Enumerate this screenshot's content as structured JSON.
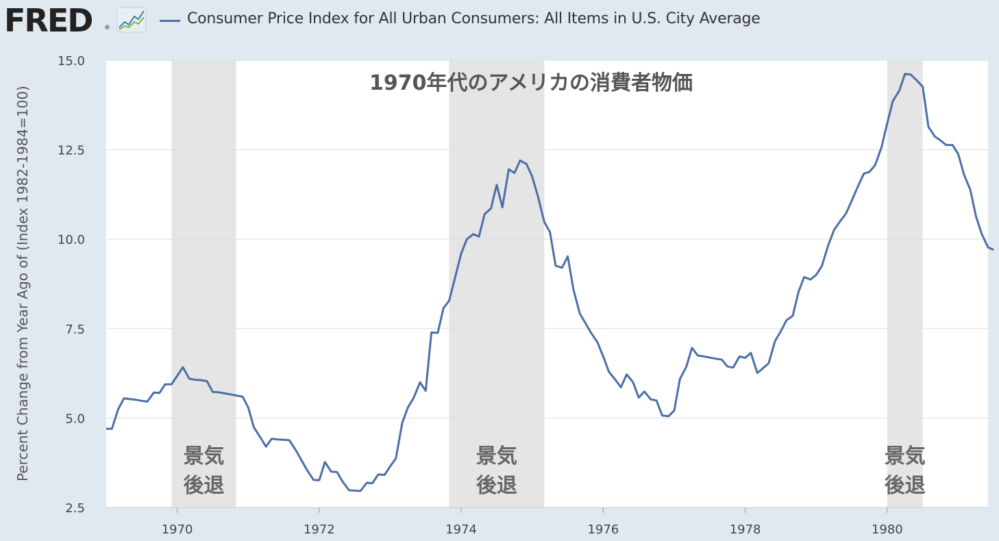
{
  "header": {
    "logo_text": "FRED",
    "logo_mark": "®",
    "graph_icon": "line-chart-icon",
    "series_legend": "Consumer Price Index for All Urban Consumers: All Items in U.S. City Average"
  },
  "colors": {
    "background": "#e1e9f0",
    "plot_background": "#ffffff",
    "line": "#4b6fa6",
    "recession_shade": "#e5e5e5",
    "gridline": "#dddddd"
  },
  "chart_data": {
    "type": "line",
    "title": "1970年代のアメリカの消費者物価",
    "ylabel": "Percent Change from Year Ago of (Index 1982-1984=100)",
    "xlabel": "",
    "xlim": [
      1969.0,
      1981.42
    ],
    "ylim": [
      2.5,
      15.0
    ],
    "yticks": [
      {
        "value": 2.5,
        "label": "2.5"
      },
      {
        "value": 5.0,
        "label": "5.0"
      },
      {
        "value": 7.5,
        "label": "7.5"
      },
      {
        "value": 10.0,
        "label": "10.0"
      },
      {
        "value": 12.5,
        "label": "12.5"
      },
      {
        "value": 15.0,
        "label": "15.0"
      }
    ],
    "xticks": [
      {
        "value": 1970,
        "label": "1970"
      },
      {
        "value": 1972,
        "label": "1972"
      },
      {
        "value": 1974,
        "label": "1974"
      },
      {
        "value": 1976,
        "label": "1976"
      },
      {
        "value": 1978,
        "label": "1978"
      },
      {
        "value": 1980,
        "label": "1980"
      }
    ],
    "grid": "horizontal",
    "recessions": [
      {
        "start": 1969.92,
        "end": 1970.83,
        "label_line1": "景気",
        "label_line2": "後退"
      },
      {
        "start": 1973.83,
        "end": 1975.17,
        "label_line1": "景気",
        "label_line2": "後退"
      },
      {
        "start": 1980.0,
        "end": 1980.5,
        "label_line1": "景気",
        "label_line2": "後退"
      }
    ],
    "series": [
      {
        "name": "Consumer Price Index for All Urban Consumers: All Items in U.S. City Average",
        "points": [
          [
            1969.0,
            4.7
          ],
          [
            1969.08,
            4.7
          ],
          [
            1969.17,
            5.25
          ],
          [
            1969.25,
            5.55
          ],
          [
            1969.33,
            5.53
          ],
          [
            1969.42,
            5.51
          ],
          [
            1969.5,
            5.48
          ],
          [
            1969.58,
            5.46
          ],
          [
            1969.67,
            5.71
          ],
          [
            1969.75,
            5.7
          ],
          [
            1969.83,
            5.94
          ],
          [
            1969.92,
            5.94
          ],
          [
            1970.0,
            6.18
          ],
          [
            1970.08,
            6.42
          ],
          [
            1970.17,
            6.1
          ],
          [
            1970.25,
            6.07
          ],
          [
            1970.33,
            6.06
          ],
          [
            1970.42,
            6.03
          ],
          [
            1970.5,
            5.73
          ],
          [
            1970.58,
            5.72
          ],
          [
            1970.67,
            5.69
          ],
          [
            1970.75,
            5.66
          ],
          [
            1970.83,
            5.63
          ],
          [
            1970.92,
            5.6
          ],
          [
            1971.0,
            5.3
          ],
          [
            1971.08,
            4.74
          ],
          [
            1971.17,
            4.46
          ],
          [
            1971.25,
            4.2
          ],
          [
            1971.33,
            4.42
          ],
          [
            1971.42,
            4.4
          ],
          [
            1971.5,
            4.39
          ],
          [
            1971.58,
            4.38
          ],
          [
            1971.67,
            4.1
          ],
          [
            1971.75,
            3.82
          ],
          [
            1971.83,
            3.54
          ],
          [
            1971.92,
            3.27
          ],
          [
            1972.0,
            3.26
          ],
          [
            1972.08,
            3.77
          ],
          [
            1972.17,
            3.5
          ],
          [
            1972.25,
            3.49
          ],
          [
            1972.33,
            3.22
          ],
          [
            1972.42,
            2.98
          ],
          [
            1972.5,
            2.97
          ],
          [
            1972.58,
            2.96
          ],
          [
            1972.67,
            3.19
          ],
          [
            1972.75,
            3.18
          ],
          [
            1972.83,
            3.42
          ],
          [
            1972.92,
            3.41
          ],
          [
            1973.0,
            3.65
          ],
          [
            1973.08,
            3.87
          ],
          [
            1973.17,
            4.87
          ],
          [
            1973.25,
            5.3
          ],
          [
            1973.33,
            5.56
          ],
          [
            1973.42,
            6.0
          ],
          [
            1973.5,
            5.76
          ],
          [
            1973.58,
            7.39
          ],
          [
            1973.67,
            7.38
          ],
          [
            1973.75,
            8.07
          ],
          [
            1973.83,
            8.28
          ],
          [
            1973.92,
            8.97
          ],
          [
            1974.0,
            9.6
          ],
          [
            1974.08,
            10.0
          ],
          [
            1974.17,
            10.14
          ],
          [
            1974.25,
            10.07
          ],
          [
            1974.33,
            10.7
          ],
          [
            1974.42,
            10.86
          ],
          [
            1974.5,
            11.52
          ],
          [
            1974.58,
            10.89
          ],
          [
            1974.67,
            11.95
          ],
          [
            1974.75,
            11.85
          ],
          [
            1974.83,
            12.2
          ],
          [
            1974.92,
            12.1
          ],
          [
            1975.0,
            11.75
          ],
          [
            1975.08,
            11.2
          ],
          [
            1975.17,
            10.48
          ],
          [
            1975.25,
            10.2
          ],
          [
            1975.33,
            9.26
          ],
          [
            1975.42,
            9.2
          ],
          [
            1975.5,
            9.52
          ],
          [
            1975.58,
            8.6
          ],
          [
            1975.67,
            7.92
          ],
          [
            1975.75,
            7.65
          ],
          [
            1975.83,
            7.38
          ],
          [
            1975.92,
            7.11
          ],
          [
            1976.0,
            6.72
          ],
          [
            1976.08,
            6.29
          ],
          [
            1976.17,
            6.07
          ],
          [
            1976.25,
            5.86
          ],
          [
            1976.33,
            6.22
          ],
          [
            1976.42,
            6.0
          ],
          [
            1976.5,
            5.57
          ],
          [
            1976.58,
            5.74
          ],
          [
            1976.67,
            5.52
          ],
          [
            1976.75,
            5.49
          ],
          [
            1976.83,
            5.07
          ],
          [
            1976.92,
            5.05
          ],
          [
            1977.0,
            5.21
          ],
          [
            1977.08,
            6.09
          ],
          [
            1977.17,
            6.43
          ],
          [
            1977.25,
            6.96
          ],
          [
            1977.33,
            6.75
          ],
          [
            1977.42,
            6.72
          ],
          [
            1977.5,
            6.69
          ],
          [
            1977.58,
            6.66
          ],
          [
            1977.67,
            6.63
          ],
          [
            1977.75,
            6.44
          ],
          [
            1977.83,
            6.41
          ],
          [
            1977.92,
            6.72
          ],
          [
            1978.0,
            6.68
          ],
          [
            1978.08,
            6.82
          ],
          [
            1978.17,
            6.26
          ],
          [
            1978.25,
            6.39
          ],
          [
            1978.33,
            6.53
          ],
          [
            1978.42,
            7.15
          ],
          [
            1978.5,
            7.42
          ],
          [
            1978.58,
            7.73
          ],
          [
            1978.67,
            7.86
          ],
          [
            1978.75,
            8.52
          ],
          [
            1978.83,
            8.94
          ],
          [
            1978.92,
            8.87
          ],
          [
            1979.0,
            9.0
          ],
          [
            1979.08,
            9.25
          ],
          [
            1979.17,
            9.83
          ],
          [
            1979.25,
            10.25
          ],
          [
            1979.33,
            10.48
          ],
          [
            1979.42,
            10.72
          ],
          [
            1979.5,
            11.07
          ],
          [
            1979.58,
            11.44
          ],
          [
            1979.67,
            11.83
          ],
          [
            1979.75,
            11.88
          ],
          [
            1979.83,
            12.07
          ],
          [
            1979.92,
            12.57
          ],
          [
            1980.0,
            13.24
          ],
          [
            1980.08,
            13.86
          ],
          [
            1980.17,
            14.15
          ],
          [
            1980.25,
            14.62
          ],
          [
            1980.33,
            14.6
          ],
          [
            1980.42,
            14.43
          ],
          [
            1980.5,
            14.26
          ],
          [
            1980.58,
            13.14
          ],
          [
            1980.67,
            12.87
          ],
          [
            1980.75,
            12.76
          ],
          [
            1980.83,
            12.63
          ],
          [
            1980.92,
            12.63
          ],
          [
            1981.0,
            12.38
          ],
          [
            1981.08,
            11.81
          ],
          [
            1981.17,
            11.38
          ],
          [
            1981.25,
            10.64
          ],
          [
            1981.33,
            10.15
          ],
          [
            1981.42,
            9.77
          ],
          [
            1981.5,
            9.7
          ]
        ]
      }
    ]
  }
}
